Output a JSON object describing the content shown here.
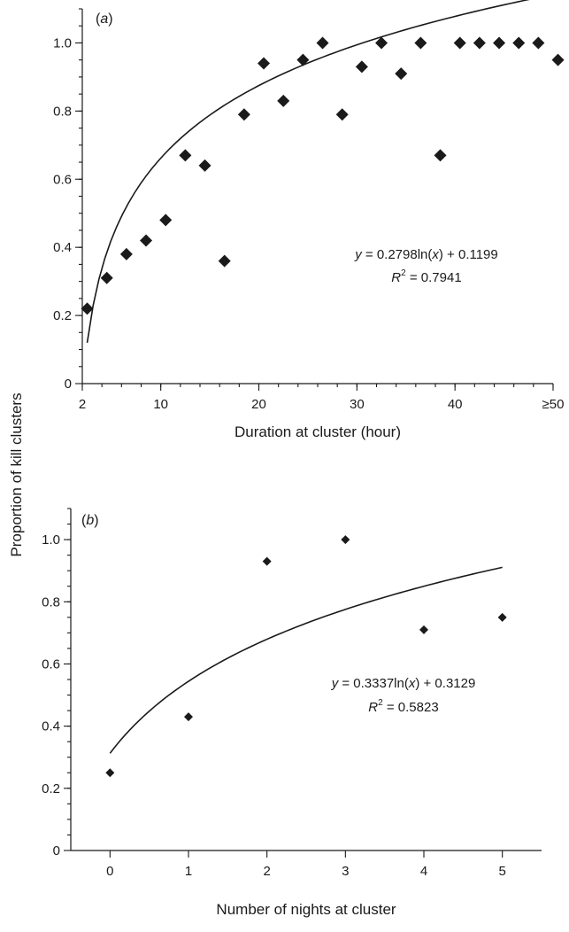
{
  "chart_data": [
    {
      "type": "scatter",
      "panel_label": "a",
      "xlabel": "Duration at cluster (hour)",
      "ylabel": "Proportion of kill clusters",
      "xlim": [
        2,
        50
      ],
      "ylim": [
        0,
        1.1
      ],
      "x_ticks": [
        2,
        10,
        20,
        30,
        40,
        50
      ],
      "x_tick_labels": [
        "2",
        "10",
        "20",
        "30",
        "40",
        "≥50"
      ],
      "y_ticks": [
        0,
        0.2,
        0.4,
        0.6,
        0.8,
        1.0
      ],
      "y_tick_labels": [
        "0",
        "0.2",
        "0.4",
        "0.6",
        "0.8",
        "1.0"
      ],
      "x": [
        2.5,
        4.5,
        6.5,
        8.5,
        10.5,
        12.5,
        14.5,
        16.5,
        18.5,
        20.5,
        22.5,
        24.5,
        26.5,
        28.5,
        30.5,
        32.5,
        34.5,
        36.5,
        38.5,
        40.5,
        42.5,
        44.5,
        46.5,
        48.5,
        50.5
      ],
      "y": [
        0.22,
        0.31,
        0.38,
        0.42,
        0.48,
        0.67,
        0.64,
        0.36,
        0.79,
        0.94,
        0.83,
        0.95,
        1.0,
        0.79,
        0.93,
        1.0,
        0.91,
        1.0,
        0.67,
        1.0,
        1.0,
        1.0,
        1.0,
        1.0,
        0.95
      ],
      "trendline": {
        "type": "logarithmic",
        "a": 0.2798,
        "b": 0.1199,
        "u_start": 1,
        "u_end": 39
      },
      "equation": {
        "line1": {
          "y": "y",
          "rest": " = 0.2798ln(",
          "x": "x",
          "end": ") + 0.1199"
        },
        "line2": {
          "r": "R",
          "sup": "2",
          "rest": " = 0.7941"
        }
      }
    },
    {
      "type": "scatter",
      "panel_label": "b",
      "xlabel": "Number of nights at cluster",
      "ylabel": "",
      "xlim": [
        -0.5,
        5.5
      ],
      "ylim": [
        0,
        1.1
      ],
      "x_ticks": [
        0,
        1,
        2,
        3,
        4,
        5
      ],
      "x_tick_labels": [
        "0",
        "1",
        "2",
        "3",
        "4",
        "5"
      ],
      "y_ticks": [
        0,
        0.2,
        0.4,
        0.6,
        0.8,
        1.0
      ],
      "y_tick_labels": [
        "0",
        "0.2",
        "0.4",
        "0.6",
        "0.8",
        "1.0"
      ],
      "x": [
        0,
        1,
        2,
        3,
        4,
        5
      ],
      "y": [
        0.25,
        0.43,
        0.93,
        1.0,
        0.71,
        0.75
      ],
      "trendline": {
        "type": "logarithmic",
        "a": 0.3337,
        "b": 0.3129,
        "u_start": 1,
        "u_end": 6
      },
      "equation": {
        "line1": {
          "y": "y",
          "rest": " = 0.3337ln(",
          "x": "x",
          "end": ") + 0.3129"
        },
        "line2": {
          "r": "R",
          "sup": "2",
          "rest": " = 0.5823"
        }
      }
    }
  ]
}
